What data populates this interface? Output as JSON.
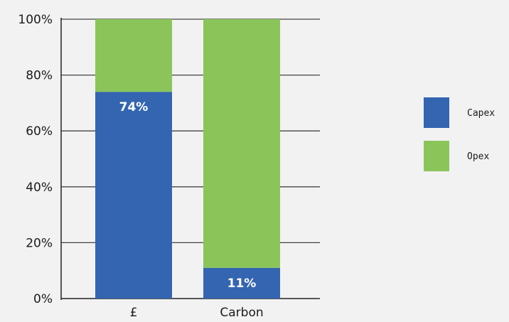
{
  "chart_data": {
    "type": "bar",
    "stacked": true,
    "categories": [
      "£",
      "Carbon"
    ],
    "series": [
      {
        "name": "Capex",
        "values": [
          74,
          11
        ],
        "color": "#3465b0",
        "labels": [
          "74%",
          "11%"
        ]
      },
      {
        "name": "Opex",
        "values": [
          26,
          89
        ],
        "color": "#8bc55a"
      }
    ],
    "ylim": [
      0,
      100
    ],
    "yticks": [
      0,
      20,
      40,
      60,
      80,
      100
    ],
    "ytick_labels": [
      "0%",
      "20%",
      "40%",
      "60%",
      "80%",
      "100%"
    ],
    "grid": true,
    "legend_position": "right",
    "title": "",
    "xlabel": "",
    "ylabel": ""
  }
}
